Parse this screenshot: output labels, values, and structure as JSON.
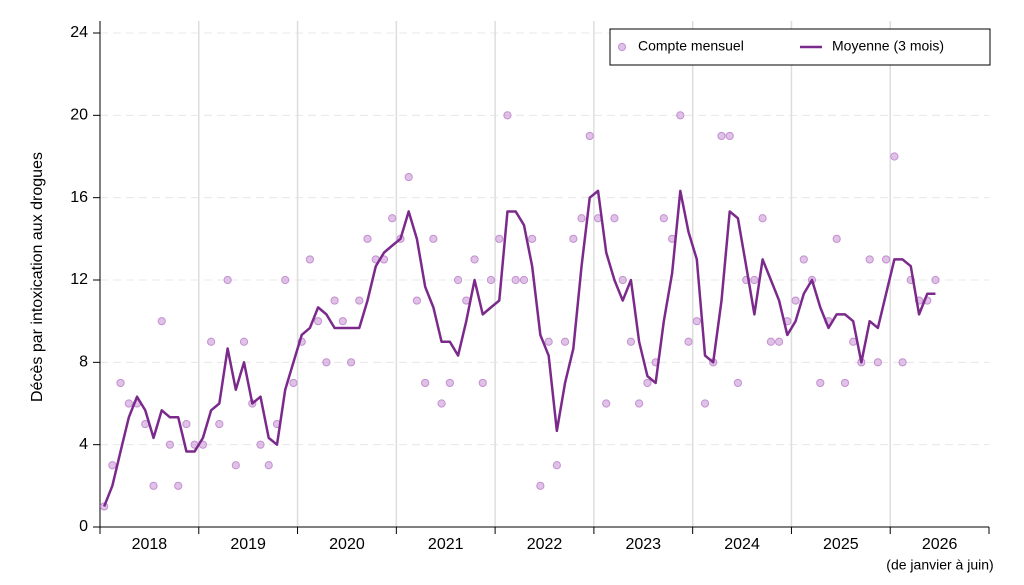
{
  "chart_data": {
    "type": "line",
    "y_label": "Décès par intoxication aux drogues",
    "annotation": "(de janvier à juin)",
    "x": [
      2018.042,
      2018.125,
      2018.208,
      2018.292,
      2018.375,
      2018.458,
      2018.542,
      2018.625,
      2018.708,
      2018.792,
      2018.875,
      2018.958,
      2019.042,
      2019.125,
      2019.208,
      2019.292,
      2019.375,
      2019.458,
      2019.542,
      2019.625,
      2019.708,
      2019.792,
      2019.875,
      2019.958,
      2020.042,
      2020.125,
      2020.208,
      2020.292,
      2020.375,
      2020.458,
      2020.542,
      2020.625,
      2020.708,
      2020.792,
      2020.875,
      2020.958,
      2021.042,
      2021.125,
      2021.208,
      2021.292,
      2021.375,
      2021.458,
      2021.542,
      2021.625,
      2021.708,
      2021.792,
      2021.875,
      2021.958,
      2022.042,
      2022.125,
      2022.208,
      2022.292,
      2022.375,
      2022.458,
      2022.542,
      2022.625,
      2022.708,
      2022.792,
      2022.875,
      2022.958,
      2023.042,
      2023.125,
      2023.208,
      2023.292,
      2023.375,
      2023.458,
      2023.542,
      2023.625,
      2023.708,
      2023.792,
      2023.875,
      2023.958,
      2024.042,
      2024.125,
      2024.208,
      2024.292,
      2024.375,
      2024.458,
      2024.542,
      2024.625,
      2024.708,
      2024.792,
      2024.875,
      2024.958,
      2025.042,
      2025.125,
      2025.208,
      2025.292,
      2025.375,
      2025.458,
      2025.542,
      2025.625,
      2025.708,
      2025.792,
      2025.875,
      2025.958,
      2026.042,
      2026.125,
      2026.208,
      2026.292,
      2026.375,
      2026.458
    ],
    "series": [
      {
        "name": "Compte mensuel",
        "type": "scatter",
        "color": "#c48fd2",
        "values": [
          1,
          3,
          7,
          6,
          6,
          5,
          2,
          10,
          4,
          2,
          5,
          4,
          4,
          9,
          5,
          12,
          3,
          9,
          6,
          4,
          3,
          5,
          12,
          7,
          9,
          13,
          10,
          8,
          11,
          10,
          8,
          11,
          14,
          13,
          13,
          15,
          14,
          17,
          11,
          7,
          14,
          6,
          7,
          12,
          11,
          13,
          7,
          12,
          14,
          20,
          12,
          12,
          14,
          2,
          9,
          3,
          9,
          14,
          15,
          19,
          15,
          6,
          15,
          12,
          9,
          6,
          7,
          8,
          15,
          14,
          20,
          9,
          10,
          6,
          8,
          19,
          19,
          7,
          12,
          12,
          15,
          9,
          9,
          10,
          11,
          13,
          12,
          7,
          10,
          14,
          7,
          9,
          8,
          13,
          8,
          13,
          18,
          8,
          12,
          11,
          11,
          12
        ]
      },
      {
        "name": "Moyenne (3 mois)",
        "type": "line",
        "color": "#7b2a8c",
        "values": [
          1,
          2,
          3.67,
          5.33,
          6.33,
          5.67,
          4.33,
          5.67,
          5.33,
          5.33,
          3.67,
          3.67,
          4.33,
          5.67,
          6,
          8.67,
          6.67,
          8,
          6,
          6.33,
          4.33,
          4,
          6.67,
          8,
          9.33,
          9.67,
          10.67,
          10.33,
          9.67,
          9.67,
          9.67,
          9.67,
          11,
          12.67,
          13.33,
          13.67,
          14,
          15.33,
          14,
          11.67,
          10.67,
          9,
          9,
          8.33,
          10,
          12,
          10.33,
          10.67,
          11,
          15.33,
          15.33,
          14.67,
          12.67,
          9.33,
          8.33,
          4.67,
          7,
          8.67,
          12.67,
          16,
          16.33,
          13.33,
          12,
          11,
          12,
          9,
          7.33,
          7,
          10,
          12.33,
          16.33,
          14.33,
          13,
          8.33,
          8,
          11,
          15.33,
          15,
          12.67,
          10.33,
          13,
          12,
          11,
          9.33,
          10,
          11.33,
          12,
          10.67,
          9.67,
          10.33,
          10.33,
          10,
          8,
          10,
          9.67,
          11.33,
          13,
          13,
          12.67,
          10.33,
          11.33,
          11.33
        ]
      }
    ],
    "xlim": [
      2018,
      2027
    ],
    "xticks": [
      2018,
      2019,
      2020,
      2021,
      2022,
      2023,
      2024,
      2025,
      2026
    ],
    "ylim": [
      0,
      24
    ],
    "yticks": [
      0,
      4,
      8,
      12,
      16,
      20,
      24
    ],
    "grid": true,
    "legend": "top-right"
  }
}
